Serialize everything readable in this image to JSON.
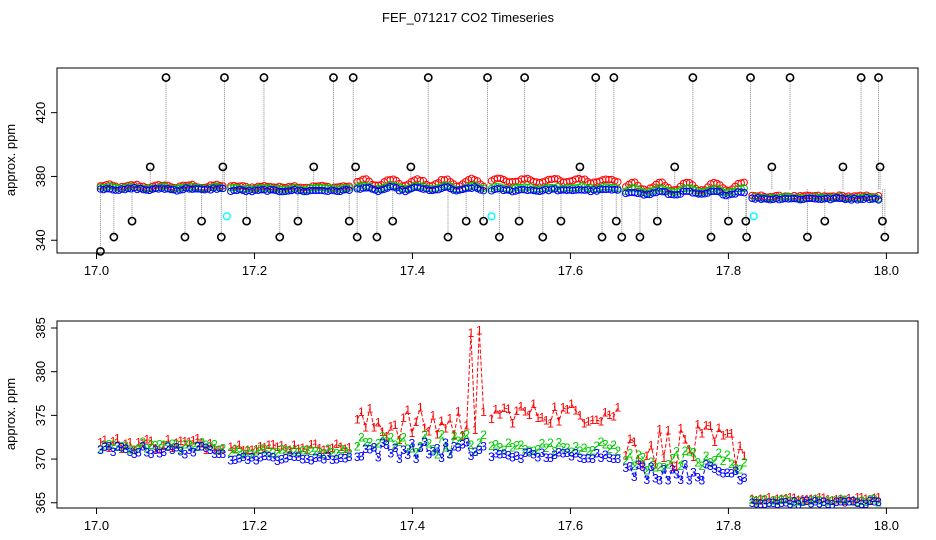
{
  "title": "FEF_071217  CO2 Timeseries",
  "chart_data": [
    {
      "type": "scatter",
      "ylabel": "approx. ppm",
      "xlabel": "",
      "xlim": [
        16.95,
        18.04
      ],
      "ylim": [
        332,
        448
      ],
      "x_ticks": [
        "17.0",
        "17.2",
        "17.4",
        "17.6",
        "17.8",
        "18.0"
      ],
      "y_ticks": [
        "340",
        "380",
        "420"
      ],
      "grid": false,
      "colors": {
        "1": "#ff0000",
        "2": "#00cc00",
        "3": "#0000ff",
        "spike": "#000000",
        "cal": "#00ffff",
        "connector": "#888888"
      },
      "series": [
        {
          "key": "1",
          "segments": [
            {
              "x0": 17.005,
              "x1": 17.16,
              "y": [
                371.0,
                372.5
              ]
            },
            {
              "x0": 17.17,
              "x1": 17.32,
              "y": [
                371.0,
                371.8
              ]
            },
            {
              "x0": 17.33,
              "x1": 17.49,
              "y": [
                372.0,
                376.0
              ]
            },
            {
              "x0": 17.5,
              "x1": 17.66,
              "y": [
                374.0,
                376.5
              ]
            },
            {
              "x0": 17.67,
              "x1": 17.82,
              "y": [
                369.0,
                374.0
              ]
            },
            {
              "x0": 17.83,
              "x1": 17.99,
              "y": [
                365.2,
                365.6
              ]
            }
          ]
        },
        {
          "key": "2",
          "segments": [
            {
              "x0": 17.005,
              "x1": 17.16,
              "y": [
                371.0,
                372.0
              ]
            },
            {
              "x0": 17.17,
              "x1": 17.32,
              "y": [
                370.5,
                371.2
              ]
            },
            {
              "x0": 17.33,
              "x1": 17.49,
              "y": [
                370.5,
                373.0
              ]
            },
            {
              "x0": 17.5,
              "x1": 17.66,
              "y": [
                370.8,
                372.0
              ]
            },
            {
              "x0": 17.67,
              "x1": 17.82,
              "y": [
                368.5,
                371.0
              ]
            },
            {
              "x0": 17.83,
              "x1": 17.99,
              "y": [
                365.0,
                365.4
              ]
            }
          ]
        },
        {
          "key": "3",
          "segments": [
            {
              "x0": 17.005,
              "x1": 17.16,
              "y": [
                370.5,
                371.5
              ]
            },
            {
              "x0": 17.17,
              "x1": 17.32,
              "y": [
                369.8,
                370.4
              ]
            },
            {
              "x0": 17.33,
              "x1": 17.49,
              "y": [
                370.0,
                372.0
              ]
            },
            {
              "x0": 17.5,
              "x1": 17.66,
              "y": [
                370.0,
                370.8
              ]
            },
            {
              "x0": 17.67,
              "x1": 17.82,
              "y": [
                367.5,
                369.5
              ]
            },
            {
              "x0": 17.83,
              "x1": 17.99,
              "y": [
                364.8,
                365.2
              ]
            }
          ]
        }
      ],
      "spikes": [
        {
          "x": 17.005,
          "y": 333
        },
        {
          "x": 17.022,
          "y": 342
        },
        {
          "x": 17.045,
          "y": 352
        },
        {
          "x": 17.068,
          "y": 386
        },
        {
          "x": 17.088,
          "y": 442
        },
        {
          "x": 17.112,
          "y": 342
        },
        {
          "x": 17.133,
          "y": 352
        },
        {
          "x": 17.158,
          "y": 342
        },
        {
          "x": 17.16,
          "y": 386
        },
        {
          "x": 17.162,
          "y": 442
        },
        {
          "x": 17.19,
          "y": 352
        },
        {
          "x": 17.212,
          "y": 442
        },
        {
          "x": 17.232,
          "y": 342
        },
        {
          "x": 17.255,
          "y": 352
        },
        {
          "x": 17.275,
          "y": 386
        },
        {
          "x": 17.3,
          "y": 442
        },
        {
          "x": 17.32,
          "y": 352
        },
        {
          "x": 17.325,
          "y": 442
        },
        {
          "x": 17.328,
          "y": 386
        },
        {
          "x": 17.33,
          "y": 342
        },
        {
          "x": 17.355,
          "y": 342
        },
        {
          "x": 17.375,
          "y": 352
        },
        {
          "x": 17.398,
          "y": 386
        },
        {
          "x": 17.42,
          "y": 442
        },
        {
          "x": 17.445,
          "y": 342
        },
        {
          "x": 17.468,
          "y": 352
        },
        {
          "x": 17.49,
          "y": 352
        },
        {
          "x": 17.495,
          "y": 442
        },
        {
          "x": 17.51,
          "y": 342
        },
        {
          "x": 17.535,
          "y": 352
        },
        {
          "x": 17.542,
          "y": 442
        },
        {
          "x": 17.565,
          "y": 342
        },
        {
          "x": 17.588,
          "y": 352
        },
        {
          "x": 17.612,
          "y": 386
        },
        {
          "x": 17.632,
          "y": 442
        },
        {
          "x": 17.64,
          "y": 342
        },
        {
          "x": 17.655,
          "y": 442
        },
        {
          "x": 17.658,
          "y": 352
        },
        {
          "x": 17.665,
          "y": 342
        },
        {
          "x": 17.688,
          "y": 342
        },
        {
          "x": 17.71,
          "y": 352
        },
        {
          "x": 17.732,
          "y": 386
        },
        {
          "x": 17.755,
          "y": 442
        },
        {
          "x": 17.778,
          "y": 342
        },
        {
          "x": 17.8,
          "y": 352
        },
        {
          "x": 17.822,
          "y": 352
        },
        {
          "x": 17.823,
          "y": 342
        },
        {
          "x": 17.828,
          "y": 442
        },
        {
          "x": 17.855,
          "y": 386
        },
        {
          "x": 17.878,
          "y": 442
        },
        {
          "x": 17.9,
          "y": 342
        },
        {
          "x": 17.922,
          "y": 352
        },
        {
          "x": 17.945,
          "y": 386
        },
        {
          "x": 17.968,
          "y": 442
        },
        {
          "x": 17.99,
          "y": 442
        },
        {
          "x": 17.992,
          "y": 386
        },
        {
          "x": 17.995,
          "y": 352
        },
        {
          "x": 17.998,
          "y": 342
        }
      ],
      "cal_points": [
        {
          "x": 17.165,
          "y": 355
        },
        {
          "x": 17.5,
          "y": 355
        },
        {
          "x": 17.832,
          "y": 355
        }
      ]
    },
    {
      "type": "line",
      "ylabel": "approx. ppm",
      "xlabel": "",
      "xlim": [
        16.95,
        18.04
      ],
      "ylim": [
        364.4,
        385.8
      ],
      "x_ticks": [
        "17.0",
        "17.2",
        "17.4",
        "17.6",
        "17.8",
        "18.0"
      ],
      "y_ticks": [
        "365",
        "370",
        "375",
        "380",
        "385"
      ],
      "grid": false,
      "series_keys": [
        "1",
        "2",
        "3"
      ]
    }
  ]
}
